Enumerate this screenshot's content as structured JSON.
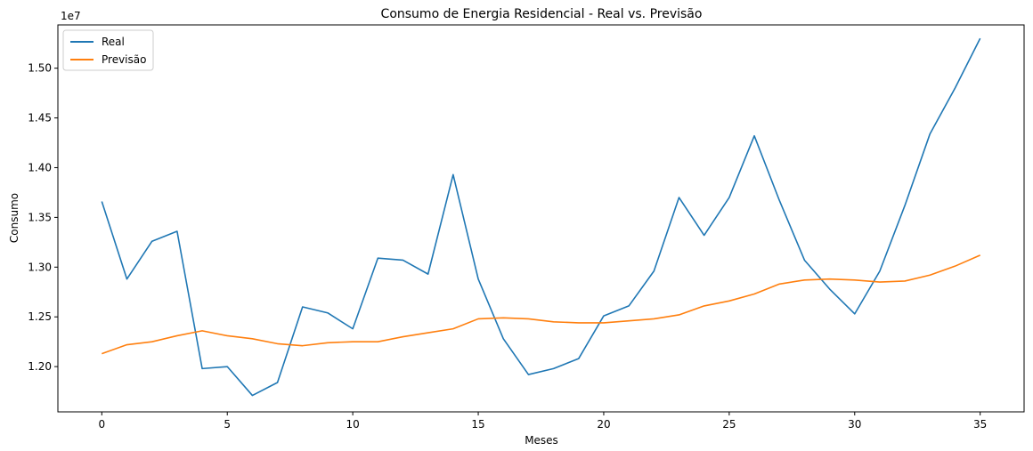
{
  "chart_data": {
    "type": "line",
    "title": "Consumo de Energia Residencial - Real vs. Previsão",
    "xlabel": "Meses",
    "ylabel": "Consumo",
    "y_multiplier_label": "1e7",
    "xlim": [
      -1.75,
      36.75
    ],
    "ylim": [
      1.1545,
      1.5435
    ],
    "x_ticks": [
      0,
      5,
      10,
      15,
      20,
      25,
      30,
      35
    ],
    "x_tick_labels": [
      "0",
      "5",
      "10",
      "15",
      "20",
      "25",
      "30",
      "35"
    ],
    "y_ticks": [
      1.2,
      1.25,
      1.3,
      1.35,
      1.4,
      1.45,
      1.5
    ],
    "y_tick_labels": [
      "1.20",
      "1.25",
      "1.30",
      "1.35",
      "1.40",
      "1.45",
      "1.50"
    ],
    "grid": false,
    "legend_position": "top-left",
    "x": [
      0,
      1,
      2,
      3,
      4,
      5,
      6,
      7,
      8,
      9,
      10,
      11,
      12,
      13,
      14,
      15,
      16,
      17,
      18,
      19,
      20,
      21,
      22,
      23,
      24,
      25,
      26,
      27,
      28,
      29,
      30,
      31,
      32,
      33,
      34,
      35
    ],
    "series": [
      {
        "name": "Real",
        "color": "#1f77b4",
        "values": [
          1.366,
          1.288,
          1.326,
          1.336,
          1.198,
          1.2,
          1.171,
          1.184,
          1.26,
          1.254,
          1.238,
          1.309,
          1.307,
          1.293,
          1.393,
          1.288,
          1.228,
          1.192,
          1.198,
          1.208,
          1.251,
          1.261,
          1.296,
          1.37,
          1.332,
          1.37,
          1.432,
          1.367,
          1.307,
          1.278,
          1.253,
          1.296,
          1.362,
          1.434,
          1.48,
          1.53
        ]
      },
      {
        "name": "Previsão",
        "color": "#ff7f0e",
        "values": [
          1.213,
          1.222,
          1.225,
          1.231,
          1.236,
          1.231,
          1.228,
          1.223,
          1.221,
          1.224,
          1.225,
          1.225,
          1.23,
          1.234,
          1.238,
          1.248,
          1.249,
          1.248,
          1.245,
          1.244,
          1.244,
          1.246,
          1.248,
          1.252,
          1.261,
          1.266,
          1.273,
          1.283,
          1.287,
          1.288,
          1.287,
          1.285,
          1.286,
          1.292,
          1.301,
          1.312
        ]
      }
    ]
  }
}
